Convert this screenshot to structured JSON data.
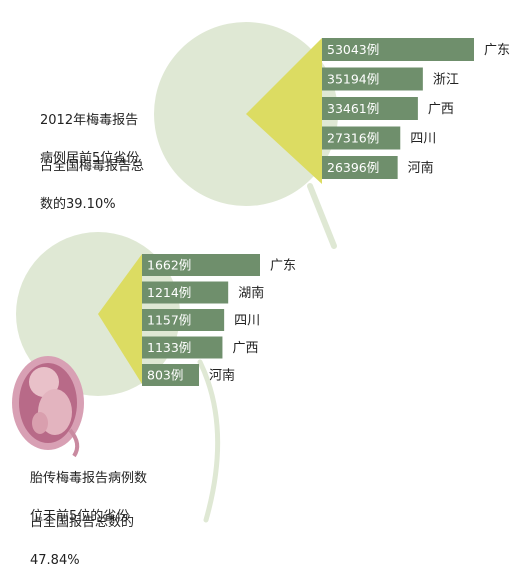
{
  "colors": {
    "pie_major": "#dfe8d4",
    "pie_slice": "#dcdc62",
    "bar_fill": "#6f8f6c",
    "bar_text": "#ffffff",
    "label_text": "#222222"
  },
  "icons": {
    "fetus": "fetus-illustration"
  },
  "chart_data": [
    {
      "type": "bar",
      "composite": "pie-breakout-bar",
      "description_lines": [
        "2012年梅毒报告",
        "病例居前5位省份"
      ],
      "share_lines": [
        "占全国梅毒报告总",
        "数的39.10%"
      ],
      "share_percent": 39.1,
      "categories": [
        "广东",
        "浙江",
        "广西",
        "四川",
        "河南"
      ],
      "values": [
        53043,
        35194,
        33461,
        27316,
        26396
      ],
      "value_labels": [
        "53043例",
        "35194例",
        "33461例",
        "27316例",
        "26396例"
      ]
    },
    {
      "type": "bar",
      "composite": "pie-breakout-bar",
      "description_lines": [
        "胎传梅毒报告病例数",
        "位于前5位的省份"
      ],
      "share_lines": [
        "占全国报告总数的",
        "47.84%"
      ],
      "share_percent": 47.84,
      "categories": [
        "广东",
        "湖南",
        "四川",
        "广西",
        "河南"
      ],
      "values": [
        1662,
        1214,
        1157,
        1133,
        803
      ],
      "value_labels": [
        "1662例",
        "1214例",
        "1157例",
        "1133例",
        "803例"
      ]
    }
  ]
}
